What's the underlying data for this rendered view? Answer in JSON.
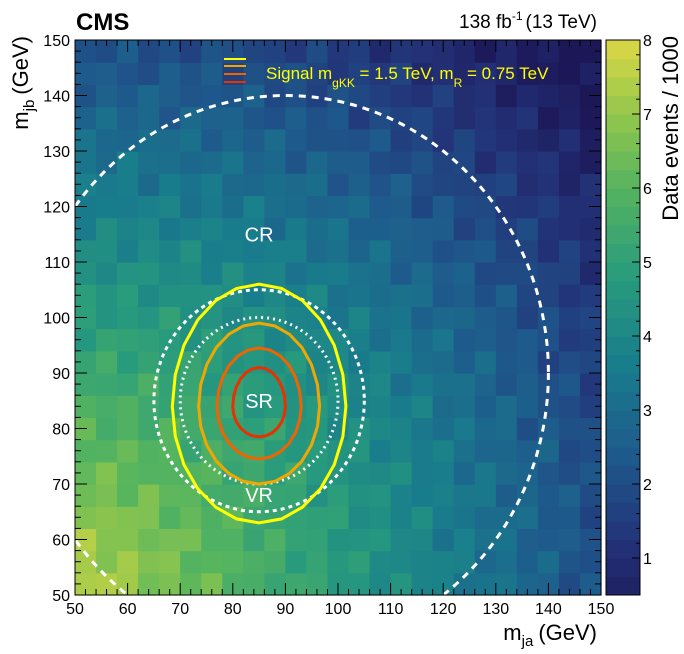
{
  "header": {
    "experiment": "CMS",
    "lumi": "138 fb",
    "lumi_exp": "-1",
    "energy": "(13 TeV)"
  },
  "chart_data": {
    "type": "heatmap",
    "xlabel": "m",
    "xlabel_sub": "ja",
    "xlabel_unit": "(GeV)",
    "ylabel": "m",
    "ylabel_sub": "jb",
    "ylabel_unit": "(GeV)",
    "zlabel": "Data events / 1000",
    "xlim": [
      50,
      150
    ],
    "ylim": [
      50,
      150
    ],
    "zlim": [
      0.5,
      8
    ],
    "x_ticks": [
      50,
      60,
      70,
      80,
      90,
      100,
      110,
      120,
      130,
      140,
      150
    ],
    "y_ticks": [
      50,
      60,
      70,
      80,
      90,
      100,
      110,
      120,
      130,
      140,
      150
    ],
    "z_ticks": [
      1,
      2,
      3,
      4,
      5,
      6,
      7,
      8
    ],
    "bin_width_gev": 4,
    "density_model": {
      "peak_events_k": 7.6,
      "peak_location": [
        50,
        50
      ],
      "note": "events decrease with distance from low-mass corner"
    },
    "regions": [
      {
        "label": "CR",
        "center": [
          90,
          90
        ],
        "radius_gev": 50,
        "style": "dashed",
        "text_at": [
          85,
          115
        ]
      },
      {
        "label": "SR",
        "center": [
          85,
          85
        ],
        "radius_gev": 15,
        "style": "dotted",
        "text_at": [
          85,
          85
        ]
      },
      {
        "label": "VR",
        "center": [
          85,
          85
        ],
        "radius_gev": 20,
        "style": "dashed",
        "text_at": [
          85,
          68
        ]
      }
    ],
    "signal": {
      "legend_label": "Signal m",
      "legend_sub1": "gKK",
      "legend_mid": " = 1.5 TeV, m",
      "legend_sub2": "R",
      "legend_end": " = 0.75 TeV",
      "contours": [
        {
          "color": "#ffff00",
          "rx": 16.5,
          "ry_up": 22,
          "ry_down": 21
        },
        {
          "color": "#f0a800",
          "rx": 11.5,
          "ry_up": 15,
          "ry_down": 14
        },
        {
          "color": "#f06400",
          "rx": 8,
          "ry_up": 10.5,
          "ry_down": 9.5
        },
        {
          "color": "#e83000",
          "rx": 5,
          "ry_up": 7,
          "ry_down": 5.5
        }
      ],
      "contour_center": [
        85,
        84
      ]
    }
  }
}
